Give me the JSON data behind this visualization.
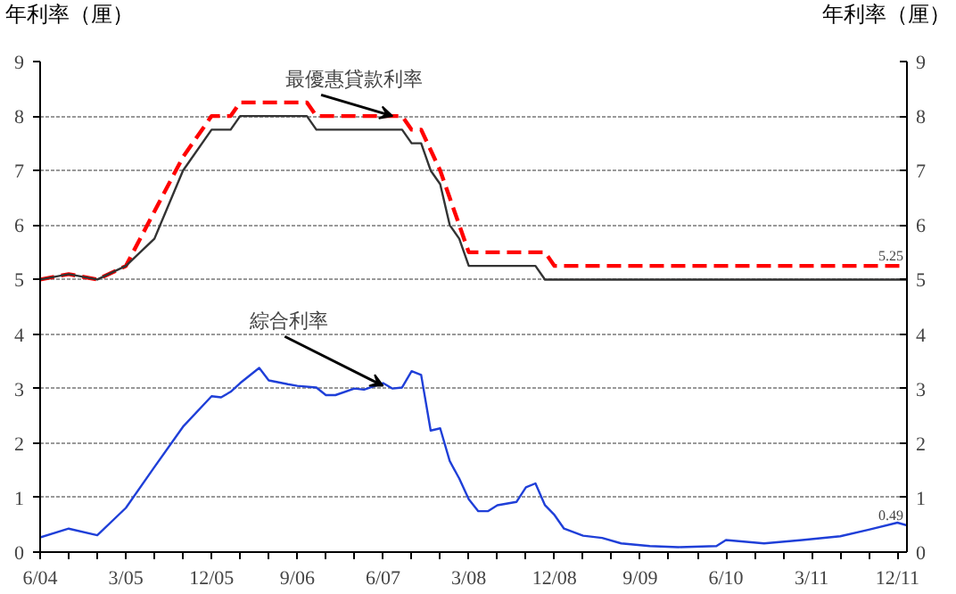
{
  "chart_data": {
    "type": "line",
    "ylabel": "年利率（厘）",
    "y2label": "年利率（厘）",
    "xlim": [
      "2004-06",
      "2012-01"
    ],
    "xticks": [
      {
        "value": "2004-06",
        "label": "6/04"
      },
      {
        "value": "2005-03",
        "label": "3/05"
      },
      {
        "value": "2005-12",
        "label": "12/05"
      },
      {
        "value": "2006-09",
        "label": "9/06"
      },
      {
        "value": "2007-06",
        "label": "6/07"
      },
      {
        "value": "2008-03",
        "label": "3/08"
      },
      {
        "value": "2008-12",
        "label": "12/08"
      },
      {
        "value": "2009-09",
        "label": "9/09"
      },
      {
        "value": "2010-06",
        "label": "6/10"
      },
      {
        "value": "2011-03",
        "label": "3/11"
      },
      {
        "value": "2011-12",
        "label": "12/11"
      }
    ],
    "ylim": [
      0,
      9
    ],
    "yticks": [
      0,
      1,
      2,
      3,
      4,
      5,
      6,
      7,
      8,
      9
    ],
    "y2lim": [
      0,
      9
    ],
    "y2ticks": [
      0,
      1,
      2,
      3,
      4,
      5,
      6,
      7,
      8,
      9
    ],
    "grid": "y",
    "series": [
      {
        "color": "#ff0000",
        "line_style": "dashed",
        "x": [
          "2004-06",
          "2004-09",
          "2004-12",
          "2005-03",
          "2005-06",
          "2005-09",
          "2005-12",
          "2006-02",
          "2006-03",
          "2006-10",
          "2006-11",
          "2007-08",
          "2007-09",
          "2007-10",
          "2007-12",
          "2008-01",
          "2008-02",
          "2008-03",
          "2008-11",
          "2008-12",
          "2012-01"
        ],
        "values": [
          5.0,
          5.1,
          5.0,
          5.25,
          6.25,
          7.25,
          8.0,
          8.0,
          8.25,
          8.25,
          8.0,
          8.0,
          7.75,
          7.75,
          7.0,
          6.5,
          6.0,
          5.5,
          5.5,
          5.25,
          5.25
        ]
      },
      {
        "color": "#333333",
        "line_style": "solid",
        "x": [
          "2004-06",
          "2004-09",
          "2004-12",
          "2005-03",
          "2005-06",
          "2005-09",
          "2005-12",
          "2006-02",
          "2006-03",
          "2006-10",
          "2006-11",
          "2007-08",
          "2007-09",
          "2007-10",
          "2007-11",
          "2007-12",
          "2008-01",
          "2008-02",
          "2008-03",
          "2008-10",
          "2008-11",
          "2012-01"
        ],
        "values": [
          5.0,
          5.1,
          5.0,
          5.25,
          5.75,
          7.0,
          7.75,
          7.75,
          8.0,
          8.0,
          7.75,
          7.75,
          7.5,
          7.5,
          7.0,
          6.75,
          6.0,
          5.75,
          5.25,
          5.25,
          5.0,
          5.0
        ]
      },
      {
        "color": "#1f3fd8",
        "line_style": "solid",
        "x": [
          "2004-06",
          "2004-09",
          "2004-12",
          "2005-03",
          "2005-06",
          "2005-09",
          "2005-12",
          "2006-01",
          "2006-02",
          "2006-03",
          "2006-05",
          "2006-06",
          "2006-08",
          "2006-09",
          "2006-11",
          "2006-12",
          "2007-01",
          "2007-03",
          "2007-04",
          "2007-06",
          "2007-07",
          "2007-08",
          "2007-09",
          "2007-10",
          "2007-11",
          "2007-12",
          "2008-01",
          "2008-02",
          "2008-03",
          "2008-04",
          "2008-05",
          "2008-06",
          "2008-08",
          "2008-09",
          "2008-10",
          "2008-11",
          "2008-12",
          "2009-01",
          "2009-03",
          "2009-05",
          "2009-07",
          "2009-10",
          "2010-01",
          "2010-05",
          "2010-06",
          "2010-10",
          "2011-02",
          "2011-06",
          "2011-09",
          "2011-12",
          "2012-01"
        ],
        "values": [
          0.27,
          0.43,
          0.31,
          0.81,
          1.56,
          2.3,
          2.86,
          2.84,
          2.94,
          3.1,
          3.38,
          3.15,
          3.08,
          3.05,
          3.02,
          2.88,
          2.88,
          3.0,
          2.98,
          3.1,
          3.0,
          3.02,
          3.32,
          3.25,
          2.23,
          2.27,
          1.67,
          1.35,
          0.97,
          0.75,
          0.75,
          0.86,
          0.92,
          1.19,
          1.26,
          0.86,
          0.68,
          0.43,
          0.3,
          0.26,
          0.16,
          0.11,
          0.09,
          0.11,
          0.22,
          0.16,
          0.22,
          0.29,
          0.41,
          0.54,
          0.49
        ]
      }
    ],
    "annotations": [
      {
        "text": "最優惠貸款利率",
        "x": "2007-07",
        "y": 8.0
      },
      {
        "text": "綜合利率",
        "x": "2007-06",
        "y": 3.05
      },
      {
        "text": "5.25",
        "x": "2012-01",
        "y": 5.25
      },
      {
        "text": "0.49",
        "x": "2012-01",
        "y": 0.49
      }
    ]
  }
}
